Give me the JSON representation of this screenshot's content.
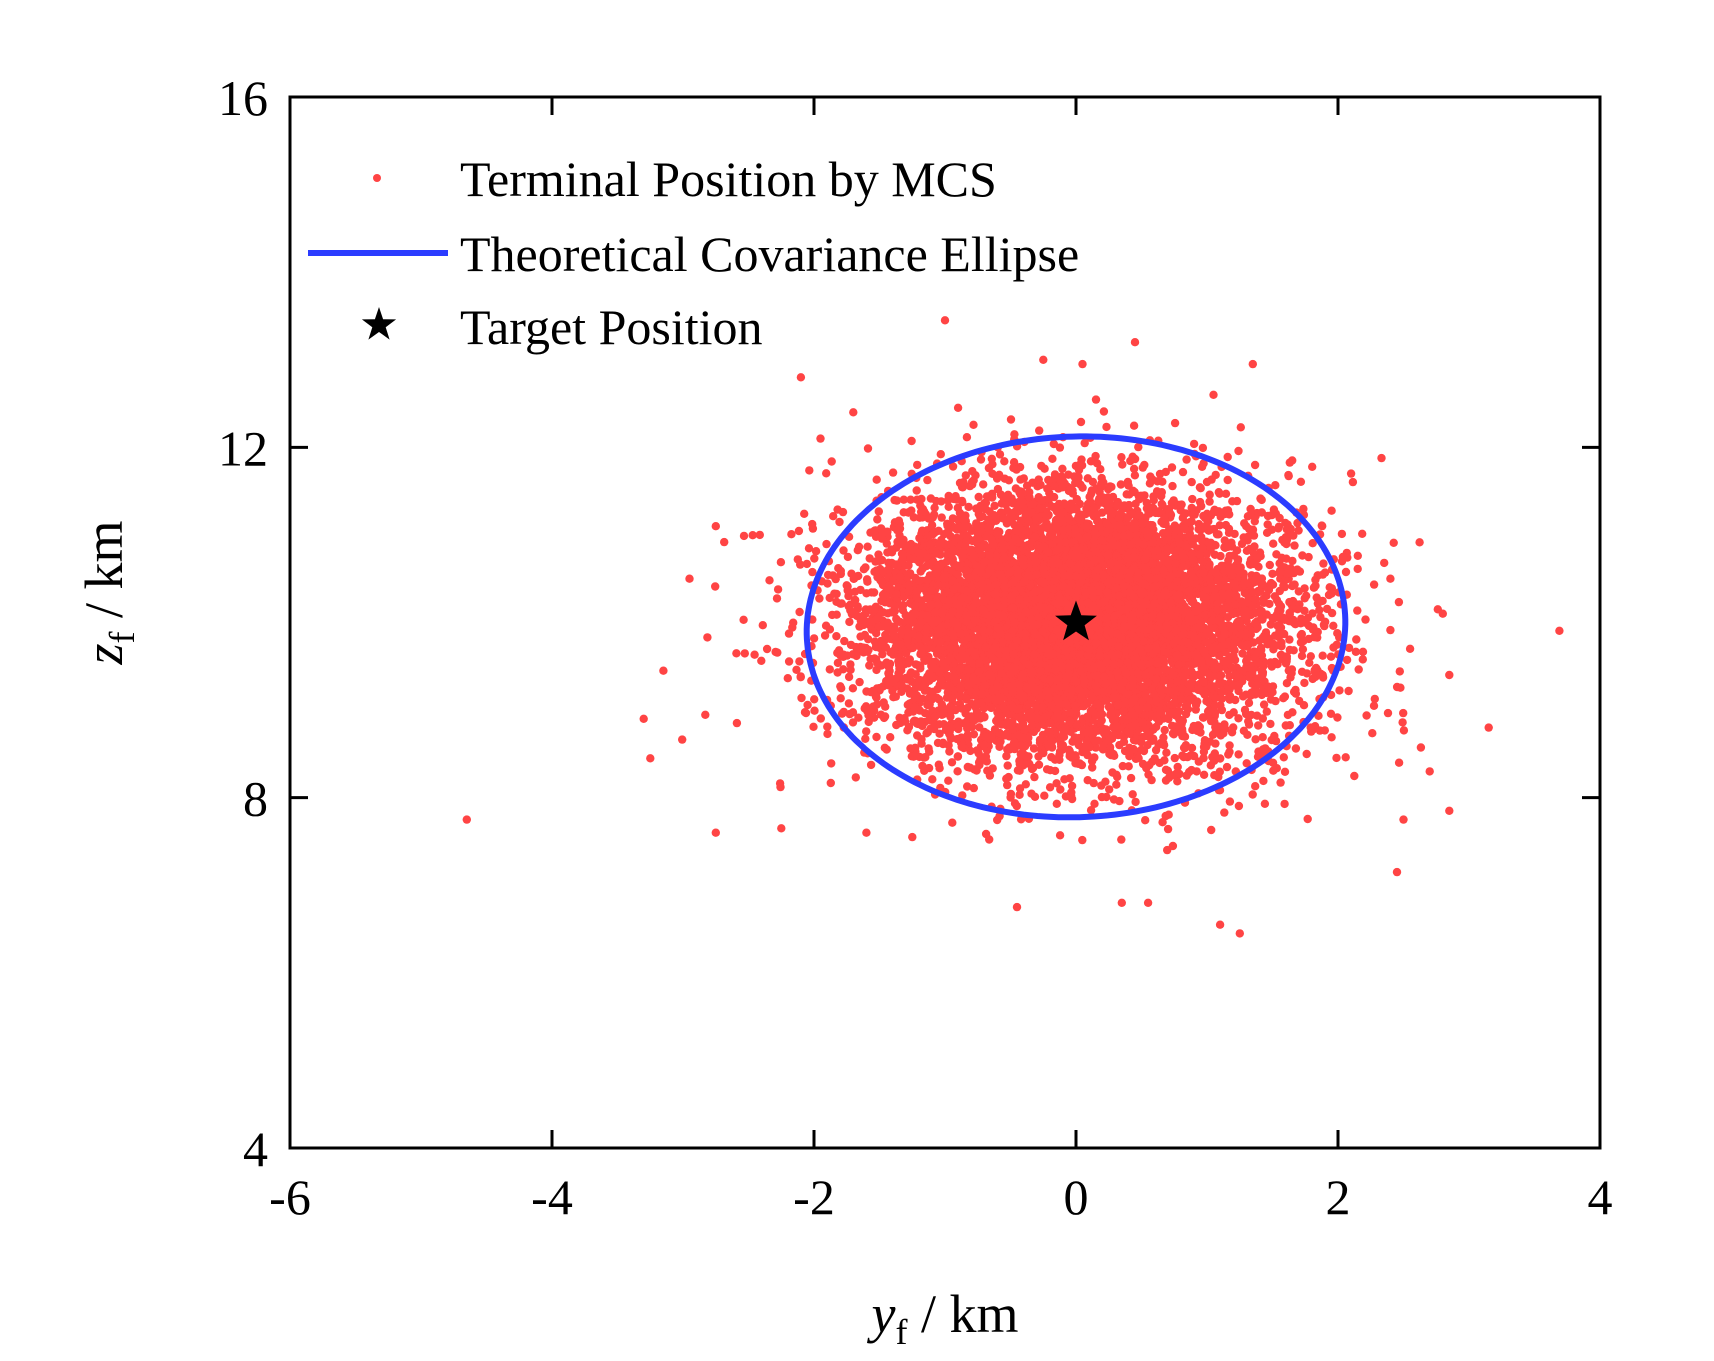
{
  "chart_data": {
    "type": "scatter",
    "title": "",
    "xlabel": {
      "var": "y",
      "sub": "f",
      "unit": " / km"
    },
    "ylabel": {
      "var": "z",
      "sub": "f",
      "unit": " / km"
    },
    "xlim": [
      -6,
      4
    ],
    "ylim": [
      4,
      16
    ],
    "xticks": [
      -6,
      -4,
      -2,
      0,
      2,
      4
    ],
    "yticks": [
      4,
      8,
      12,
      16
    ],
    "grid": false,
    "legend_position": "top-left",
    "colors": {
      "scatter": "#ff4444",
      "ellipse": "#2b3cff",
      "target": "#000000",
      "axes": "#000000"
    },
    "series": [
      {
        "name": "Terminal Position by MCS",
        "kind": "scatter",
        "generator": {
          "count": 9000,
          "mean": [
            0.0,
            10.0
          ],
          "std": [
            0.8,
            0.75
          ],
          "seed": 7
        },
        "outliers": [
          [
            -4.65,
            7.75
          ],
          [
            -3.3,
            8.9
          ],
          [
            -3.25,
            8.45
          ],
          [
            -3.15,
            9.45
          ],
          [
            -2.95,
            10.5
          ],
          [
            -2.75,
            7.6
          ],
          [
            -2.75,
            11.1
          ],
          [
            -2.1,
            12.8
          ],
          [
            -1.95,
            12.1
          ],
          [
            -1.7,
            12.4
          ],
          [
            -1.0,
            13.45
          ],
          [
            -0.25,
            13.0
          ],
          [
            0.05,
            12.95
          ],
          [
            0.45,
            13.2
          ],
          [
            1.35,
            12.95
          ],
          [
            1.05,
            12.6
          ],
          [
            1.65,
            11.85
          ],
          [
            2.1,
            11.7
          ],
          [
            2.4,
            10.5
          ],
          [
            2.55,
            9.7
          ],
          [
            2.8,
            10.1
          ],
          [
            2.85,
            9.4
          ],
          [
            3.15,
            8.8
          ],
          [
            2.85,
            7.85
          ],
          [
            2.7,
            8.3
          ],
          [
            2.45,
            7.15
          ],
          [
            2.5,
            7.75
          ],
          [
            1.25,
            6.45
          ],
          [
            1.1,
            6.55
          ],
          [
            0.55,
            6.8
          ],
          [
            0.35,
            6.8
          ],
          [
            -0.45,
            6.75
          ],
          [
            -1.6,
            7.6
          ],
          [
            -2.25,
            7.65
          ],
          [
            -1.25,
            7.55
          ]
        ]
      },
      {
        "name": "Theoretical Covariance Ellipse",
        "kind": "ellipse",
        "center": [
          0.0,
          9.95
        ],
        "semi_axes": [
          2.05,
          2.18
        ],
        "tilt_deg": -12
      },
      {
        "name": "Target Position",
        "kind": "marker",
        "point": [
          0.0,
          10.0
        ],
        "marker": "star"
      }
    ]
  }
}
